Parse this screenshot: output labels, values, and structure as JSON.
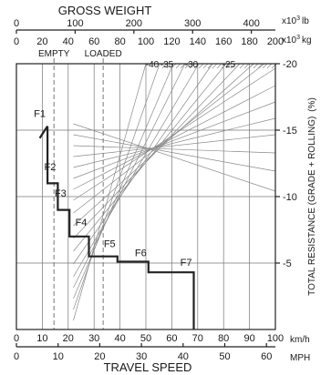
{
  "chart_data": {
    "type": "line",
    "title": "",
    "x_axis_bottom": {
      "label": "TRAVEL SPEED",
      "kmh": {
        "unit": "km/h",
        "range": [
          0,
          100
        ],
        "ticks": [
          "0",
          "10",
          "20",
          "30",
          "40",
          "50",
          "60",
          "70",
          "80",
          "90",
          "100"
        ]
      },
      "mph": {
        "unit": "MPH",
        "range": [
          0,
          62.137
        ],
        "ticks": [
          "0",
          "10",
          "20",
          "30",
          "40",
          "50",
          "60"
        ]
      }
    },
    "x_axis_top": {
      "label": "GROSS WEIGHT",
      "lb": {
        "unit": "x10³ lb",
        "unit_base": "x10",
        "unit_exp": "3",
        "unit_suffix": "lb",
        "range": [
          0,
          440.9
        ],
        "ticks": [
          "0",
          "100",
          "200",
          "300",
          "400"
        ]
      },
      "kg": {
        "unit": "x10³ kg",
        "unit_base": "x10",
        "unit_exp": "3",
        "unit_suffix": "kg",
        "range": [
          0,
          200
        ],
        "ticks": [
          "0",
          "20",
          "40",
          "60",
          "80",
          "100",
          "120",
          "140",
          "160",
          "180",
          "200"
        ]
      }
    },
    "y_axis_right": {
      "label": "TOTAL RESISTANCE (GRADE + ROLLING)",
      "unit": "(%)",
      "range": [
        0,
        -20
      ],
      "ticks": [
        "-5",
        "-10",
        "-15",
        "-20"
      ]
    },
    "resistance_scale_labels": [
      "-40",
      "-35",
      "-30",
      "-25"
    ],
    "weight_markers": [
      {
        "name": "EMPTY",
        "kg": 29
      },
      {
        "name": "LOADED",
        "kg": 67
      }
    ],
    "series": [
      {
        "points": [
          [
            12,
            -15.3
          ],
          [
            12,
            -11
          ],
          [
            16,
            -11
          ],
          [
            16,
            -9
          ],
          [
            20.5,
            -9
          ],
          [
            20.5,
            -7
          ],
          [
            28,
            -7
          ],
          [
            28,
            -5.5
          ],
          [
            39,
            -5.5
          ],
          [
            39,
            -5.1
          ],
          [
            51,
            -5.1
          ],
          [
            51,
            -4.3
          ],
          [
            68.5,
            -4.3
          ],
          [
            68.5,
            0
          ]
        ]
      }
    ],
    "gears": [
      {
        "label": "F1",
        "x": 9,
        "y": -16
      },
      {
        "label": "F2",
        "x": 13,
        "y": -12
      },
      {
        "label": "F3",
        "x": 17,
        "y": -10
      },
      {
        "label": "F4",
        "x": 25,
        "y": -7.8
      },
      {
        "label": "F5",
        "x": 36,
        "y": -6.2
      },
      {
        "label": "F6",
        "x": 48,
        "y": -5.5
      },
      {
        "label": "F7",
        "x": 65.5,
        "y": -4.8
      }
    ],
    "grid": true
  }
}
